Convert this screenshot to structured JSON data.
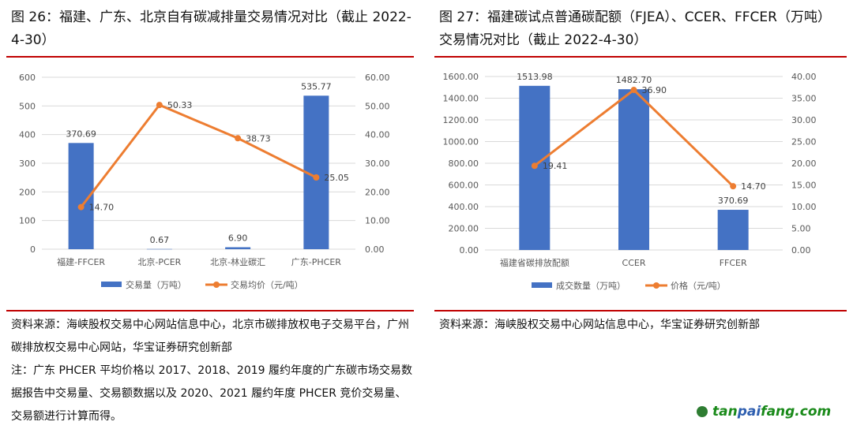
{
  "left": {
    "title": "图 26：福建、广东、北京自有碳减排量交易情况对比（截止 2022-4-30）",
    "source": "资料来源：海峡股权交易中心网站信息中心，北京市碳排放权电子交易平台，广州碳排放权交易中心网站，华宝证券研究创新部",
    "note": "注：广东 PHCER 平均价格以 2017、2018、2019 履约年度的广东碳市场交易数据报告中交易量、交易额数据以及 2020、2021 履约年度 PHCER 竞价交易量、交易额进行计算而得。"
  },
  "right": {
    "title": "图 27：福建碳试点普通碳配额（FJEA）、CCER、FFCER（万吨）交易情况对比（截止 2022-4-30）",
    "source": "资料来源：海峡股权交易中心网站信息中心，华宝证券研究创新部"
  },
  "logo": {
    "text_a": "tan",
    "text_b": "pai",
    "text_c": "fang.com"
  },
  "colors": {
    "bar": "#4472c4",
    "line": "#ed7d31",
    "rule": "#c00000"
  },
  "chart_data": [
    {
      "type": "bar+line",
      "categories": [
        "福建-FFCER",
        "北京-PCER",
        "北京-林业碳汇",
        "广东-PHCER"
      ],
      "series": [
        {
          "name": "交易量（万吨）",
          "type": "bar",
          "axis": "left",
          "values": [
            370.69,
            0.67,
            6.9,
            535.77
          ],
          "labels": [
            "370.69",
            "0.67",
            "6.90",
            "535.77"
          ]
        },
        {
          "name": "交易均价（元/吨）",
          "type": "line",
          "axis": "right",
          "values": [
            14.7,
            50.33,
            38.73,
            25.05
          ],
          "labels": [
            "14.70",
            "50.33",
            "38.73",
            "25.05"
          ]
        }
      ],
      "ylim": [
        0,
        600
      ],
      "yticks": [
        "0",
        "100",
        "200",
        "300",
        "400",
        "500",
        "600"
      ],
      "y2lim": [
        0,
        60
      ],
      "y2ticks": [
        "0.00",
        "10.00",
        "20.00",
        "30.00",
        "40.00",
        "50.00",
        "60.00"
      ],
      "grid": true,
      "legend": "bottom"
    },
    {
      "type": "bar+line",
      "categories": [
        "福建省碳排放配额",
        "CCER",
        "FFCER"
      ],
      "series": [
        {
          "name": "成交数量（万吨）",
          "type": "bar",
          "axis": "left",
          "values": [
            1513.98,
            1482.7,
            370.69
          ],
          "labels": [
            "1513.98",
            "1482.70",
            "370.69"
          ]
        },
        {
          "name": "价格（元/吨）",
          "type": "line",
          "axis": "right",
          "values": [
            19.41,
            36.9,
            14.7
          ],
          "labels": [
            "19.41",
            "36.90",
            "14.70"
          ]
        }
      ],
      "ylim": [
        0,
        1600
      ],
      "yticks": [
        "0.00",
        "200.00",
        "400.00",
        "600.00",
        "800.00",
        "1000.00",
        "1200.00",
        "1400.00",
        "1600.00"
      ],
      "y2lim": [
        0,
        40
      ],
      "y2ticks": [
        "0.00",
        "5.00",
        "10.00",
        "15.00",
        "20.00",
        "25.00",
        "30.00",
        "35.00",
        "40.00"
      ],
      "grid": true,
      "legend": "bottom"
    }
  ]
}
